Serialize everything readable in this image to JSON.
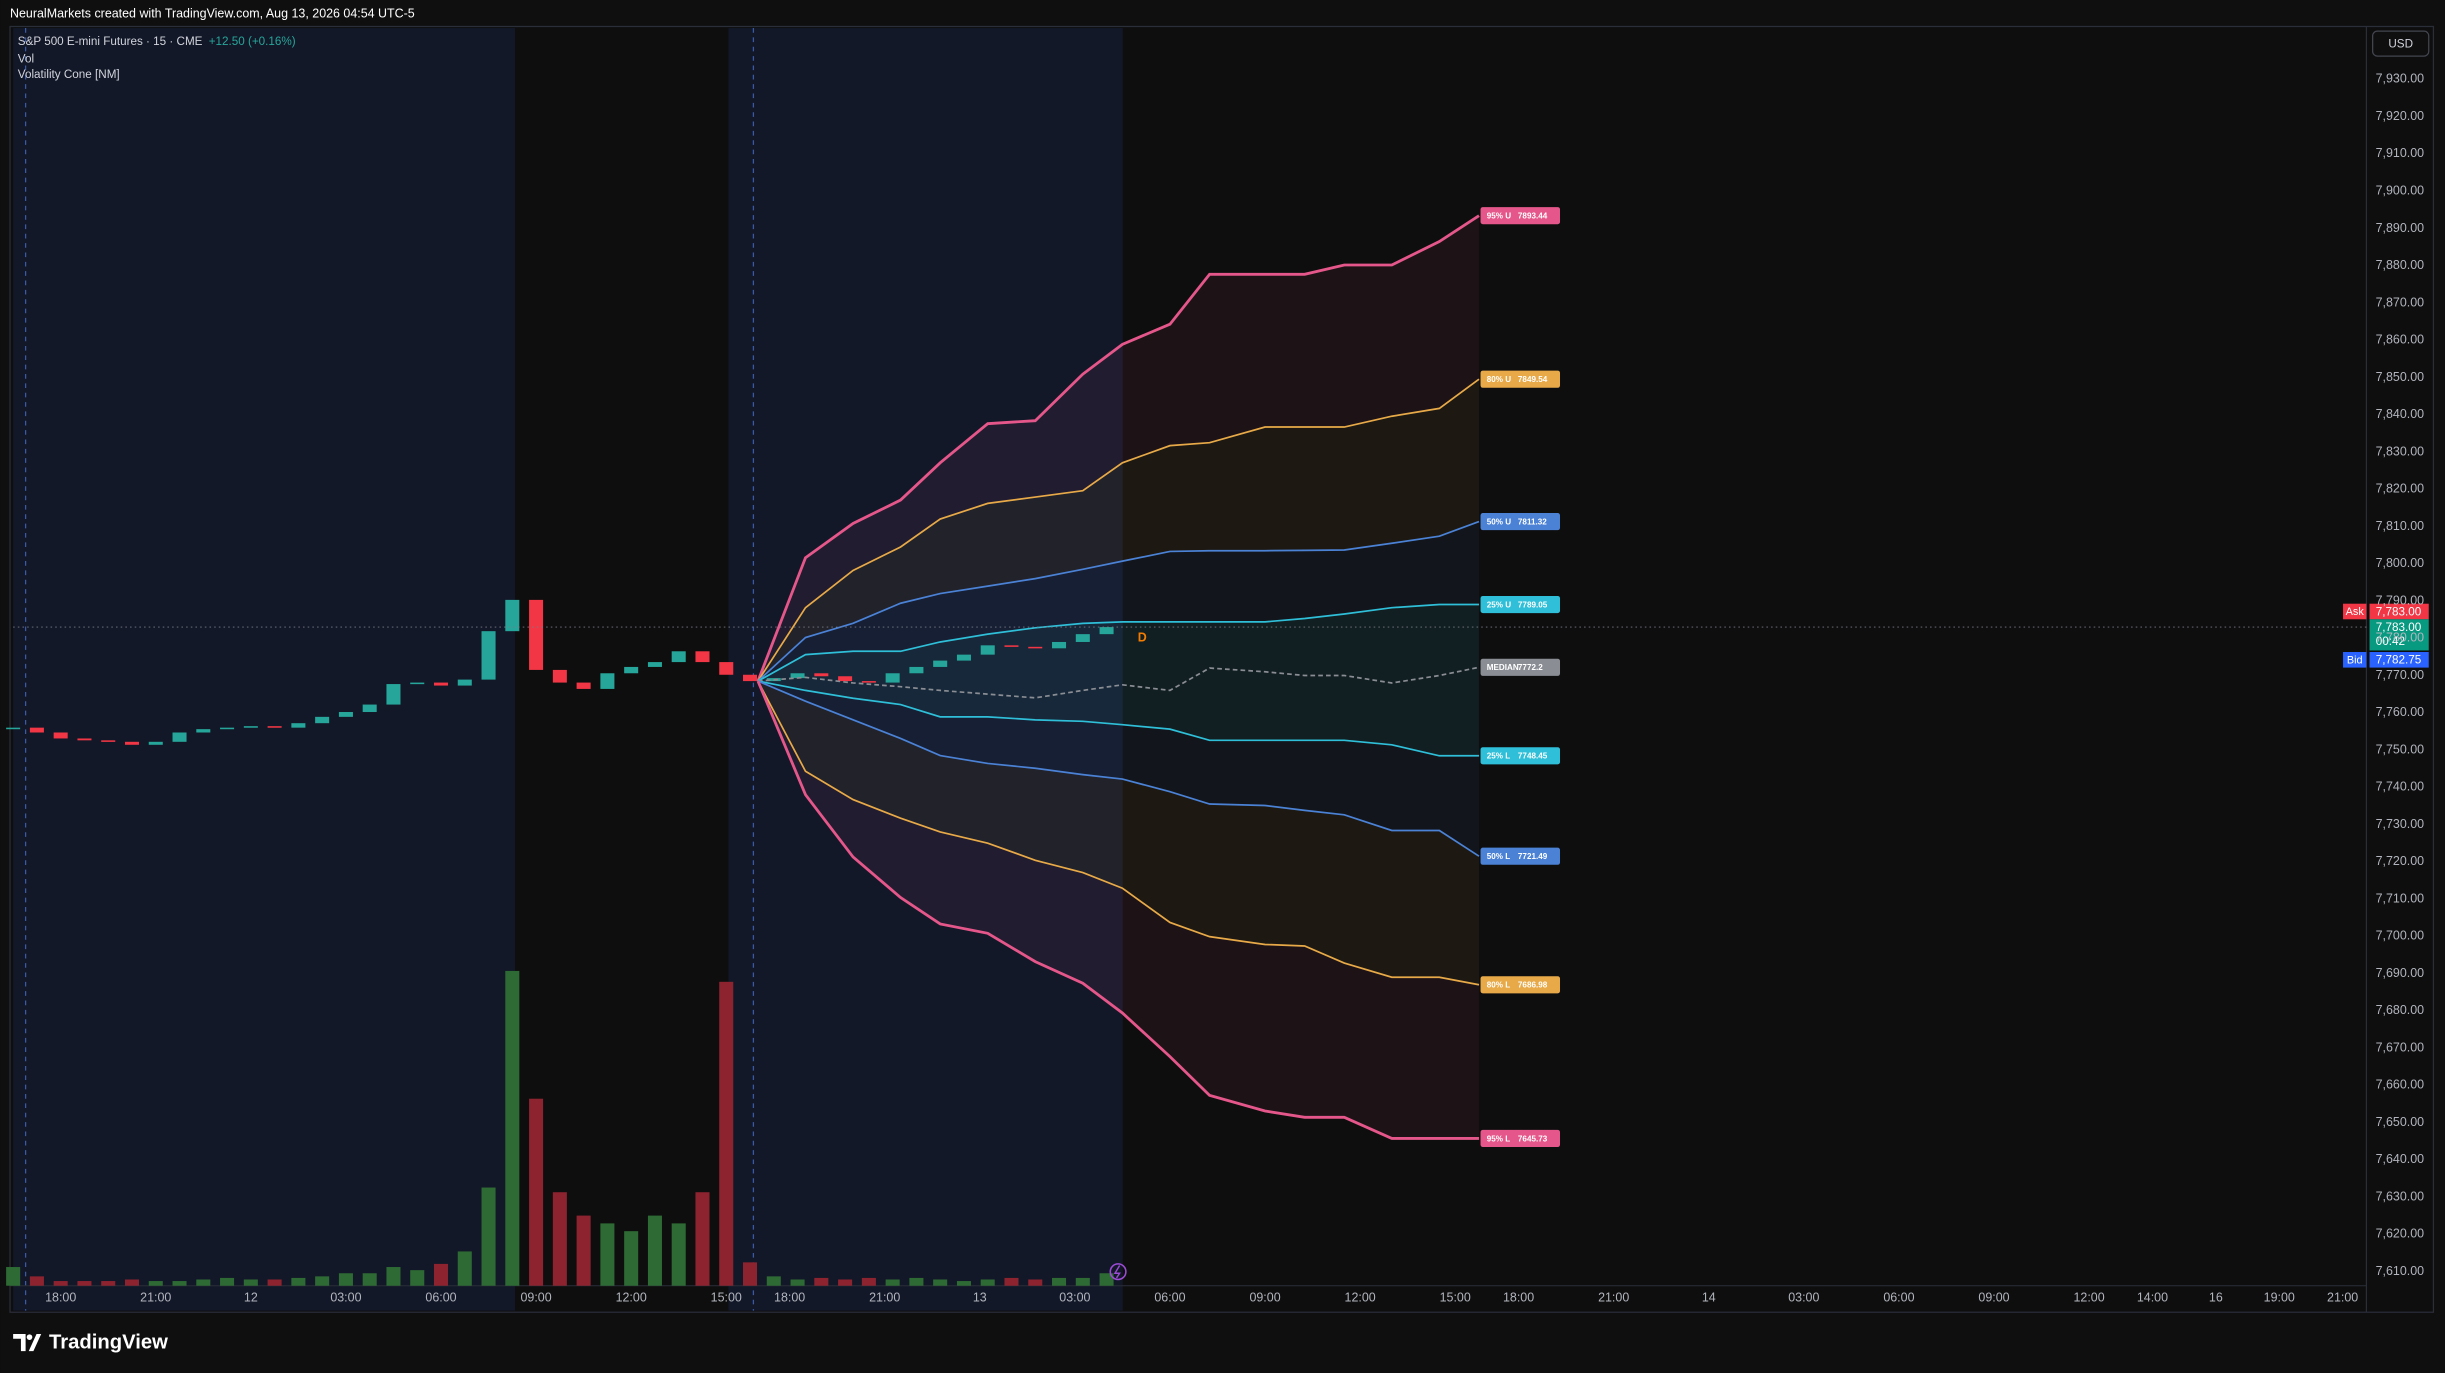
{
  "header": {
    "text": "NeuralMarkets created with TradingView.com, Aug 13, 2026 04:54 UTC-5"
  },
  "currency": "USD",
  "quote": {
    "ask_label": "Ask",
    "ask": "7,783.00",
    "last": "7,783.00",
    "countdown": "00:42",
    "bid_label": "Bid",
    "bid": "7,782.75"
  },
  "footer": {
    "brand": "TradingView"
  },
  "chart_data": {
    "type": "candlestick",
    "title": "S&P 500 E-mini Futures · 15 · CME",
    "change": "+12.50 (+0.16%)",
    "indicators": [
      "Vol",
      "Volatility Cone [NM]"
    ],
    "marker": "D",
    "up_color": "#26a69a",
    "down_color": "#f23645",
    "volume_up_color": "#2e6b34",
    "volume_down_color": "#8e2330",
    "x": [
      -6,
      -3,
      0,
      3,
      6,
      9,
      12,
      15,
      18,
      21,
      24,
      27,
      30,
      33,
      36,
      39,
      42,
      45,
      48,
      51,
      54,
      57,
      60,
      63,
      66,
      69,
      72,
      75,
      78,
      81,
      84,
      87,
      90,
      93,
      96,
      99,
      102,
      105,
      108,
      111,
      114,
      117,
      120,
      123,
      126,
      129,
      132
    ],
    "close": [
      7756,
      7754.7,
      7753.1,
      7752.6,
      7752.2,
      7751.4,
      7752.2,
      7754.7,
      7755.6,
      7756,
      7756.4,
      7756,
      7757.2,
      7758.9,
      7760.2,
      7762.2,
      7767.7,
      7768.1,
      7767.3,
      7768.9,
      7781.9,
      7790.3,
      7771.5,
      7768.1,
      7766.4,
      7770.6,
      7772.3,
      7773.6,
      7776.5,
      7773.6,
      7770.2,
      7768.5,
      7769.3,
      7770.6,
      7769.8,
      7768.5,
      7768.1,
      7770.6,
      7772.3,
      7774,
      7775.6,
      7778.1,
      7777.7,
      7777.3,
      7779,
      7781.1,
      7783
    ],
    "volume": [
      12,
      6,
      3,
      3,
      3,
      4,
      3,
      3,
      4,
      5,
      4,
      4,
      5,
      6,
      8,
      8,
      12,
      10,
      14,
      22,
      63,
      202,
      120,
      60,
      45,
      40,
      35,
      45,
      40,
      60,
      195,
      15,
      6,
      4,
      5,
      4,
      5,
      4,
      5,
      4,
      3,
      4,
      5,
      4,
      5,
      5,
      8
    ],
    "vol_ylim": [
      0,
      225
    ],
    "xlim": [
      -6,
      291
    ],
    "xticks": [
      {
        "value": 0,
        "label": "18:00"
      },
      {
        "value": 12,
        "label": "21:00"
      },
      {
        "value": 24,
        "label": "12"
      },
      {
        "value": 36,
        "label": "03:00"
      },
      {
        "value": 48,
        "label": "06:00"
      },
      {
        "value": 60,
        "label": "09:00"
      },
      {
        "value": 72,
        "label": "12:00"
      },
      {
        "value": 84,
        "label": "15:00"
      },
      {
        "value": 92,
        "label": "18:00"
      },
      {
        "value": 104,
        "label": "21:00"
      },
      {
        "value": 116,
        "label": "13"
      },
      {
        "value": 128,
        "label": "03:00"
      },
      {
        "value": 140,
        "label": "06:00"
      },
      {
        "value": 152,
        "label": "09:00"
      },
      {
        "value": 164,
        "label": "12:00"
      },
      {
        "value": 176,
        "label": "15:00"
      },
      {
        "value": 184,
        "label": "18:00"
      },
      {
        "value": 196,
        "label": "21:00"
      },
      {
        "value": 208,
        "label": "14"
      },
      {
        "value": 220,
        "label": "03:00"
      },
      {
        "value": 232,
        "label": "06:00"
      },
      {
        "value": 244,
        "label": "09:00"
      },
      {
        "value": 256,
        "label": "12:00"
      },
      {
        "value": 264,
        "label": "14:00"
      },
      {
        "value": 272,
        "label": "16"
      },
      {
        "value": 280,
        "label": "19:00"
      },
      {
        "value": 288,
        "label": "21:00"
      }
    ],
    "ylim": [
      7599.5,
      7943.8
    ],
    "yticks": [
      {
        "value": 7930,
        "label": "7,930.00"
      },
      {
        "value": 7920,
        "label": "7,920.00"
      },
      {
        "value": 7910,
        "label": "7,910.00"
      },
      {
        "value": 7900,
        "label": "7,900.00"
      },
      {
        "value": 7890,
        "label": "7,890.00"
      },
      {
        "value": 7880,
        "label": "7,880.00"
      },
      {
        "value": 7870,
        "label": "7,870.00"
      },
      {
        "value": 7860,
        "label": "7,860.00"
      },
      {
        "value": 7850,
        "label": "7,850.00"
      },
      {
        "value": 7840,
        "label": "7,840.00"
      },
      {
        "value": 7830,
        "label": "7,830.00"
      },
      {
        "value": 7820,
        "label": "7,820.00"
      },
      {
        "value": 7810,
        "label": "7,810.00"
      },
      {
        "value": 7800,
        "label": "7,800.00"
      },
      {
        "value": 7790,
        "label": "7,790.00"
      },
      {
        "value": 7780,
        "label": "7,780.00"
      },
      {
        "value": 7770,
        "label": "7,770.00"
      },
      {
        "value": 7760,
        "label": "7,760.00"
      },
      {
        "value": 7750,
        "label": "7,750.00"
      },
      {
        "value": 7740,
        "label": "7,740.00"
      },
      {
        "value": 7730,
        "label": "7,730.00"
      },
      {
        "value": 7720,
        "label": "7,720.00"
      },
      {
        "value": 7710,
        "label": "7,710.00"
      },
      {
        "value": 7700,
        "label": "7,700.00"
      },
      {
        "value": 7690,
        "label": "7,690.00"
      },
      {
        "value": 7680,
        "label": "7,680.00"
      },
      {
        "value": 7670,
        "label": "7,670.00"
      },
      {
        "value": 7660,
        "label": "7,660.00"
      },
      {
        "value": 7650,
        "label": "7,650.00"
      },
      {
        "value": 7640,
        "label": "7,640.00"
      },
      {
        "value": 7630,
        "label": "7,630.00"
      },
      {
        "value": 7620,
        "label": "7,620.00"
      },
      {
        "value": 7610,
        "label": "7,610.00"
      }
    ],
    "grid": false,
    "cone": {
      "x": [
        88,
        94,
        100,
        106,
        111,
        117,
        123,
        129,
        134,
        140,
        145,
        152,
        157,
        162,
        168,
        174,
        179
      ],
      "series": [
        {
          "name": "95% U",
          "color": "#e5578a",
          "values": [
            7768.5,
            7801.6,
            7810.8,
            7817.1,
            7827.1,
            7837.6,
            7838.4,
            7850.9,
            7858.9,
            7864.3,
            7877.7,
            7877.7,
            7877.7,
            7880.2,
            7880.2,
            7886.5,
            7893.44
          ]
        },
        {
          "name": "80% U",
          "color": "#e8aa48",
          "values": [
            7768.5,
            7788.2,
            7798.2,
            7804.5,
            7812.0,
            7816.2,
            7817.9,
            7819.6,
            7827.1,
            7831.7,
            7832.5,
            7836.7,
            7836.7,
            7836.7,
            7839.6,
            7841.7,
            7849.54
          ]
        },
        {
          "name": "50% U",
          "color": "#4b82d6",
          "values": [
            7768.5,
            7780.2,
            7784,
            7789.4,
            7792,
            7794,
            7796,
            7798.5,
            7800.7,
            7803.3,
            7803.5,
            7803.5,
            7803.6,
            7803.7,
            7805.5,
            7807.4,
            7811.32
          ]
        },
        {
          "name": "25% U",
          "color": "#2fbfd8",
          "values": [
            7768.5,
            7775.6,
            7776.5,
            7776.5,
            7779.0,
            7781.1,
            7782.8,
            7784.0,
            7784.4,
            7784.4,
            7784.4,
            7784.4,
            7785.3,
            7786.5,
            7788.2,
            7789.05,
            7789.05
          ]
        },
        {
          "name": "MEDIAN",
          "color": "#8a8d94",
          "values": [
            7768.5,
            7769.5,
            7768,
            7767,
            7766,
            7765,
            7764,
            7766,
            7767.5,
            7766,
            7772,
            7771,
            7770,
            7770,
            7768,
            7770,
            7772.2
          ]
        },
        {
          "name": "25% L",
          "color": "#2fbfd8",
          "values": [
            7768.5,
            7766.0,
            7763.9,
            7762.2,
            7758.9,
            7758.9,
            7758.1,
            7757.7,
            7756.8,
            7755.6,
            7752.6,
            7752.6,
            7752.6,
            7752.6,
            7751.4,
            7748.45,
            7748.45
          ]
        },
        {
          "name": "50% L",
          "color": "#4b82d6",
          "values": [
            7768.5,
            7763.1,
            7758.1,
            7753.1,
            7748.5,
            7746.4,
            7745.1,
            7743.4,
            7742.2,
            7738.8,
            7735.5,
            7735.1,
            7733.8,
            7732.6,
            7728.4,
            7728.4,
            7721.49
          ]
        },
        {
          "name": "80% L",
          "color": "#e8aa48",
          "values": [
            7768.5,
            7744.3,
            7736.7,
            7731.7,
            7728.0,
            7725.0,
            7720.4,
            7717.1,
            7712.9,
            7703.7,
            7699.9,
            7697.8,
            7697.4,
            7692.8,
            7689.0,
            7689.0,
            7686.98
          ]
        },
        {
          "name": "95% L",
          "color": "#e5578a",
          "values": [
            7768.5,
            7738.0,
            7721.3,
            7710.4,
            7703.3,
            7700.8,
            7693.2,
            7687.4,
            7679.4,
            7667.7,
            7657.3,
            7653.1,
            7651.4,
            7651.4,
            7645.73,
            7645.73,
            7645.73
          ]
        }
      ]
    }
  }
}
